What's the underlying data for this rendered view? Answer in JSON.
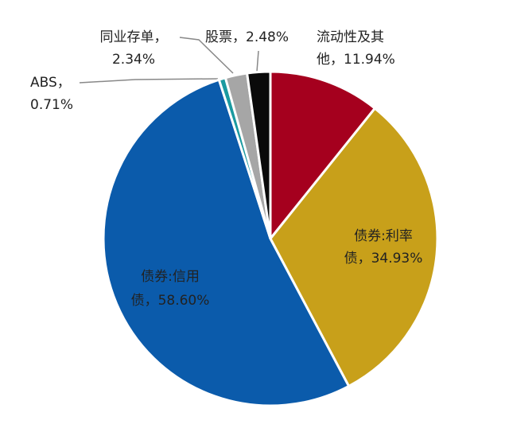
{
  "chart_data": {
    "type": "pie",
    "values": [
      11.94,
      34.93,
      58.6,
      0.71,
      2.34,
      2.48
    ],
    "value_labels": [
      [
        "流动性及其",
        "他，11.94%"
      ],
      [
        "债券:利率",
        "债，34.93%"
      ],
      [
        "债券:信用",
        "债，58.60%"
      ],
      [
        "ABS，",
        "0.71%"
      ],
      [
        "同业存单，",
        "2.34%"
      ],
      [
        "股票，2.48%"
      ]
    ],
    "colors": [
      "#a5001e",
      "#c8a01a",
      "#0b5bab",
      "#1a9aa0",
      "#a6a6a6",
      "#0a0a0a"
    ]
  }
}
